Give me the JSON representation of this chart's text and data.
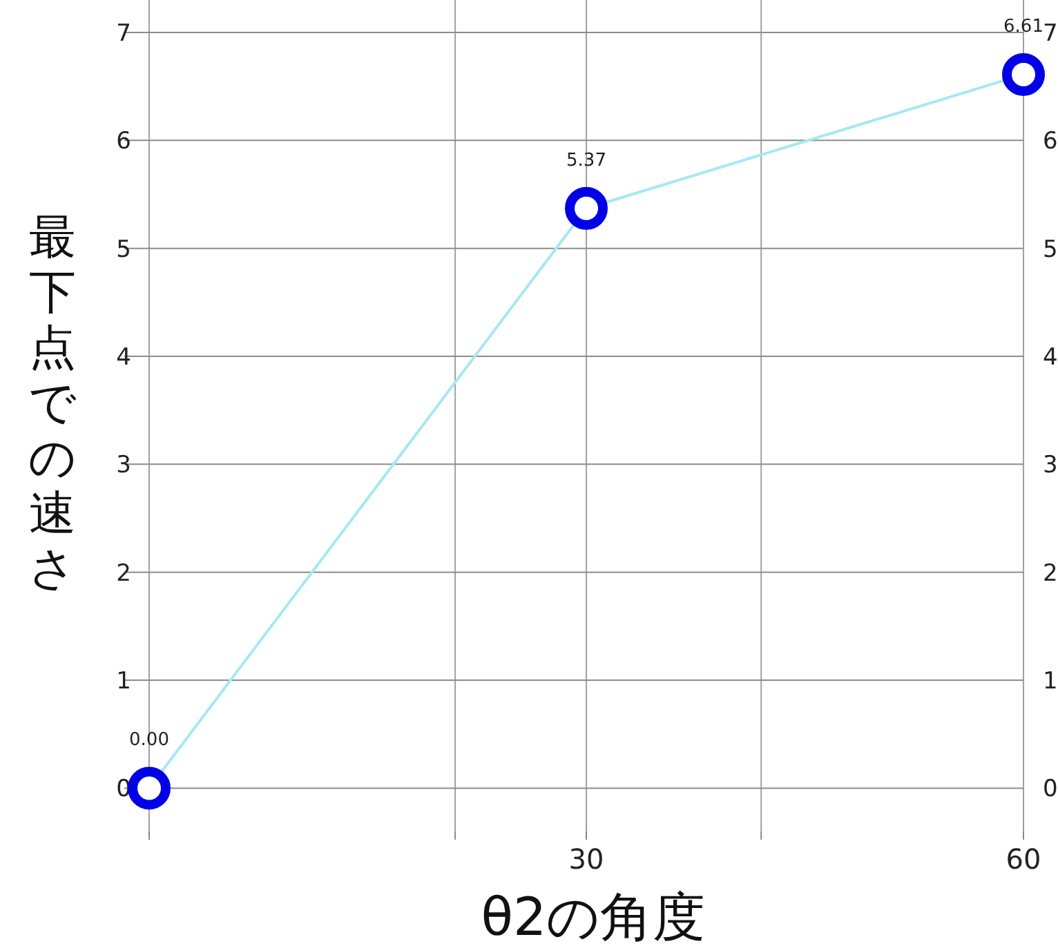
{
  "chart_data": {
    "type": "line",
    "xlabel": "θ2の角度",
    "ylabel": "最下点での速さ",
    "x": [
      0,
      30,
      60
    ],
    "series": [
      {
        "color": "#a6e8f4",
        "values": [
          0,
          5.37,
          6.61
        ],
        "value_labels": [
          "0.00",
          "5.37",
          "6.61"
        ]
      }
    ],
    "xlim": [
      0,
      60
    ],
    "xticks": [
      {
        "value": 0,
        "label": null
      },
      {
        "value": 21,
        "label": null
      },
      {
        "value": 30,
        "label": "30"
      },
      {
        "value": 42,
        "label": null
      },
      {
        "value": 60,
        "label": "60"
      }
    ],
    "ylim": [
      -0.4,
      7.3
    ],
    "yticks": [
      0,
      1,
      2,
      3,
      4,
      5,
      6,
      7
    ],
    "y2lim": [
      -0.4,
      7.3
    ],
    "y2ticks": [
      0,
      1,
      2,
      3,
      4,
      5,
      6,
      7
    ],
    "grid": true,
    "marker": "circle",
    "line_style": "solid"
  }
}
